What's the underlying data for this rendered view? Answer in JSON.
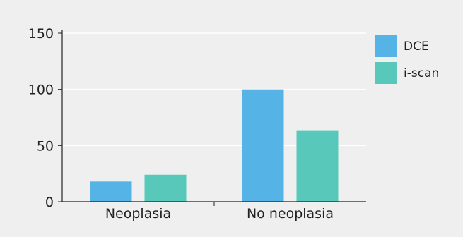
{
  "chart_data": {
    "type": "bar",
    "title": "",
    "xlabel": "",
    "ylabel": "",
    "categories": [
      "Neoplasia",
      "No neoplasia"
    ],
    "series": [
      {
        "name": "DCE",
        "values": [
          18,
          100
        ],
        "color": "#56b3e6"
      },
      {
        "name": "i-scan",
        "values": [
          24,
          63
        ],
        "color": "#57c8b9"
      }
    ],
    "ylim": [
      0,
      150
    ],
    "yticks": [
      0,
      50,
      100,
      150
    ],
    "grid": true,
    "legend": "right"
  }
}
